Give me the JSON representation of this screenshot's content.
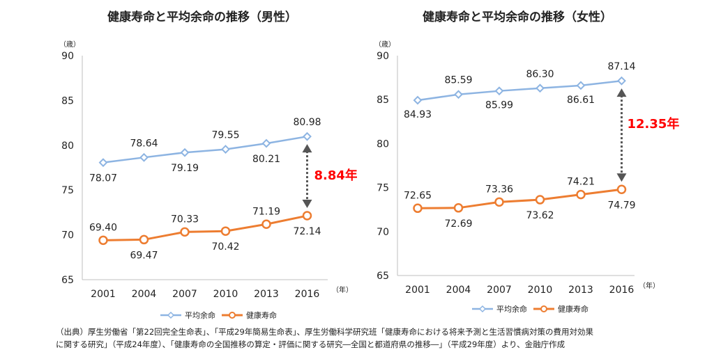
{
  "chart_data": [
    {
      "type": "line",
      "title": "健康寿命と平均余命の推移（男性）",
      "y_unit": "（歳）",
      "x_unit": "（年）",
      "categories": [
        "2001",
        "2004",
        "2007",
        "2010",
        "2013",
        "2016"
      ],
      "ylim": [
        65,
        90
      ],
      "yticks": [
        "65",
        "70",
        "75",
        "80",
        "85",
        "90"
      ],
      "grid": false,
      "legend_position": "bottom",
      "series": [
        {
          "name": "平均余命",
          "values": [
            78.07,
            78.64,
            79.19,
            79.55,
            80.21,
            80.98
          ],
          "labels": [
            "78.07",
            "78.64",
            "79.19",
            "79.55",
            "80.21",
            "80.98"
          ],
          "label_side": [
            "below",
            "above",
            "below",
            "above",
            "below",
            "above"
          ],
          "color": "#8db4e2",
          "marker": "diamond"
        },
        {
          "name": "健康寿命",
          "values": [
            69.4,
            69.47,
            70.33,
            70.42,
            71.19,
            72.14
          ],
          "labels": [
            "69.40",
            "69.47",
            "70.33",
            "70.42",
            "71.19",
            "72.14"
          ],
          "label_side": [
            "above",
            "below",
            "above",
            "below",
            "above",
            "below"
          ],
          "color": "#ed7d31",
          "marker": "circle"
        }
      ],
      "gap_annotation": "8.84年"
    },
    {
      "type": "line",
      "title": "健康寿命と平均余命の推移（女性）",
      "y_unit": "（歳）",
      "x_unit": "（年）",
      "categories": [
        "2001",
        "2004",
        "2007",
        "2010",
        "2013",
        "2016"
      ],
      "ylim": [
        65,
        90
      ],
      "yticks": [
        "65",
        "70",
        "75",
        "80",
        "85",
        "90"
      ],
      "grid": false,
      "legend_position": "bottom",
      "series": [
        {
          "name": "平均余命",
          "values": [
            84.93,
            85.59,
            85.99,
            86.3,
            86.61,
            87.14
          ],
          "labels": [
            "84.93",
            "85.59",
            "85.99",
            "86.30",
            "86.61",
            "87.14"
          ],
          "label_side": [
            "below",
            "above",
            "below",
            "above",
            "below",
            "above"
          ],
          "color": "#8db4e2",
          "marker": "diamond"
        },
        {
          "name": "健康寿命",
          "values": [
            72.65,
            72.69,
            73.36,
            73.62,
            74.21,
            74.79
          ],
          "labels": [
            "72.65",
            "72.69",
            "73.36",
            "73.62",
            "74.21",
            "74.79"
          ],
          "label_side": [
            "above",
            "below",
            "above",
            "below",
            "above",
            "below"
          ],
          "color": "#ed7d31",
          "marker": "circle"
        }
      ],
      "gap_annotation": "12.35年"
    }
  ],
  "footnote": {
    "line1": "（出典）厚生労働省「第22回完全生命表」、「平成29年簡易生命表」、厚生労働科学研究班「健康寿命における将来予測と生活習慣病対策の費用対効果",
    "line2": "に関する研究」（平成24年度）、「健康寿命の全国推移の算定・評価に関する研究―全国と都道府県の推移―」（平成29年度）より、金融庁作成"
  }
}
